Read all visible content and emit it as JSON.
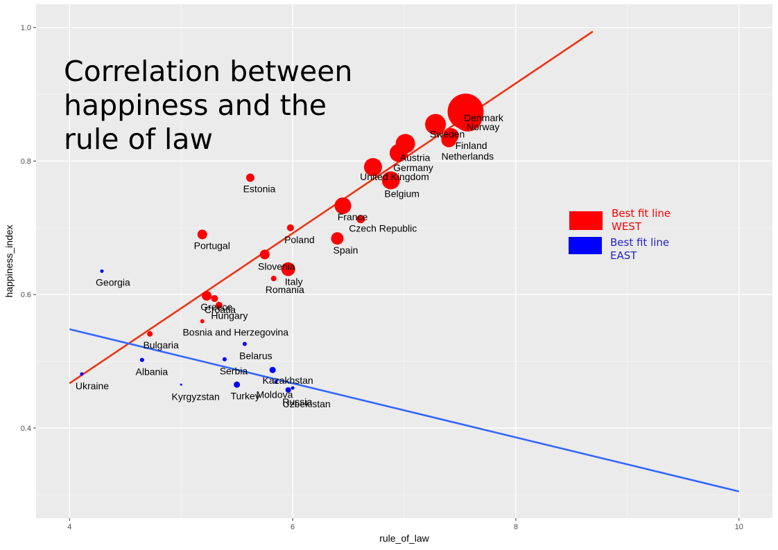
{
  "chart_data": {
    "type": "scatter",
    "title": "Correlation between happiness and the rule of law",
    "title_lines": [
      "Correlation between",
      "happiness and the",
      "rule of law"
    ],
    "xlabel": "rule_of_law",
    "ylabel": "happiness_index",
    "xlim": [
      3.7,
      10.3
    ],
    "ylim": [
      0.265,
      1.035
    ],
    "xticks": [
      4,
      6,
      8,
      10
    ],
    "yticks": [
      0.4,
      0.6,
      0.8,
      1.0
    ],
    "xtick_labels": [
      "4",
      "6",
      "8",
      "10"
    ],
    "ytick_labels": [
      "0.4",
      "0.6",
      "0.8",
      "1.0"
    ],
    "grid": true,
    "legend_placement": "right",
    "legend": [
      {
        "lines": [
          "Best fit line",
          "WEST"
        ],
        "color": "#ff0000"
      },
      {
        "lines": [
          "Best fit line",
          "EAST"
        ],
        "color": "#0000ff"
      }
    ],
    "series": [
      {
        "group": "west",
        "color": "#ff0000",
        "points": [
          {
            "label": "Denmark",
            "x": 7.55,
            "y": 0.874,
            "size": 26
          },
          {
            "label": "Norway",
            "x": 7.57,
            "y": 0.866,
            "size": 21
          },
          {
            "label": "Sweden",
            "x": 7.28,
            "y": 0.855,
            "size": 15
          },
          {
            "label": "Finland",
            "x": 7.42,
            "y": 0.838,
            "size": 11
          },
          {
            "label": "Netherlands",
            "x": 7.4,
            "y": 0.832,
            "size": 11
          },
          {
            "label": "Austria",
            "x": 7.01,
            "y": 0.826,
            "size": 14
          },
          {
            "label": "Germany",
            "x": 6.95,
            "y": 0.812,
            "size": 13
          },
          {
            "label": "United Kingdom",
            "x": 6.72,
            "y": 0.791,
            "size": 13
          },
          {
            "label": "Belgium",
            "x": 6.88,
            "y": 0.771,
            "size": 13
          },
          {
            "label": "France",
            "x": 6.45,
            "y": 0.733,
            "size": 12
          },
          {
            "label": "Czech Republic",
            "x": 6.61,
            "y": 0.713,
            "size": 6
          },
          {
            "label": "Spain",
            "x": 6.4,
            "y": 0.684,
            "size": 9
          },
          {
            "label": "Estonia",
            "x": 5.62,
            "y": 0.775,
            "size": 6
          },
          {
            "label": "Portugal",
            "x": 5.19,
            "y": 0.69,
            "size": 7
          },
          {
            "label": "Poland",
            "x": 5.98,
            "y": 0.7,
            "size": 5
          },
          {
            "label": "Slovenia",
            "x": 5.75,
            "y": 0.66,
            "size": 7
          },
          {
            "label": "Italy",
            "x": 5.96,
            "y": 0.638,
            "size": 10
          },
          {
            "label": "Romania",
            "x": 5.83,
            "y": 0.624,
            "size": 4
          },
          {
            "label": "Greece",
            "x": 5.23,
            "y": 0.598,
            "size": 7
          },
          {
            "label": "Croatia",
            "x": 5.3,
            "y": 0.594,
            "size": 5
          },
          {
            "label": "Hungary",
            "x": 5.34,
            "y": 0.584,
            "size": 5
          },
          {
            "label": "Bosnia and Herzegovina",
            "x": 5.19,
            "y": 0.56,
            "size": 3
          },
          {
            "label": "Bulgaria",
            "x": 4.72,
            "y": 0.541,
            "size": 4
          }
        ]
      },
      {
        "group": "east",
        "color": "#0000ff",
        "points": [
          {
            "label": "Georgia",
            "x": 4.29,
            "y": 0.635,
            "size": 2.5
          },
          {
            "label": "Ukraine",
            "x": 4.11,
            "y": 0.481,
            "size": 2.5
          },
          {
            "label": "Albania",
            "x": 4.65,
            "y": 0.502,
            "size": 3
          },
          {
            "label": "Kyrgyzstan",
            "x": 5.0,
            "y": 0.465,
            "size": 1.5
          },
          {
            "label": "Belarus",
            "x": 5.57,
            "y": 0.526,
            "size": 3
          },
          {
            "label": "Serbia",
            "x": 5.39,
            "y": 0.503,
            "size": 3
          },
          {
            "label": "Turkey",
            "x": 5.5,
            "y": 0.465,
            "size": 4.5
          },
          {
            "label": "Kazakhstan",
            "x": 5.82,
            "y": 0.487,
            "size": 4.5
          },
          {
            "label": "Moldova",
            "x": 5.85,
            "y": 0.469,
            "size": 2.5
          },
          {
            "label": "Russia",
            "x": 5.96,
            "y": 0.457,
            "size": 4
          },
          {
            "label": "Uzbekistan",
            "x": 6.0,
            "y": 0.46,
            "size": 2.5
          }
        ]
      }
    ],
    "fit_lines": [
      {
        "name": "WEST",
        "color": "#ee3311",
        "x": [
          4.0,
          8.69
        ],
        "y": [
          0.467,
          0.994
        ]
      },
      {
        "name": "EAST",
        "color": "#3366ff",
        "x": [
          4.0,
          10.0
        ],
        "y": [
          0.548,
          0.305
        ]
      }
    ]
  }
}
